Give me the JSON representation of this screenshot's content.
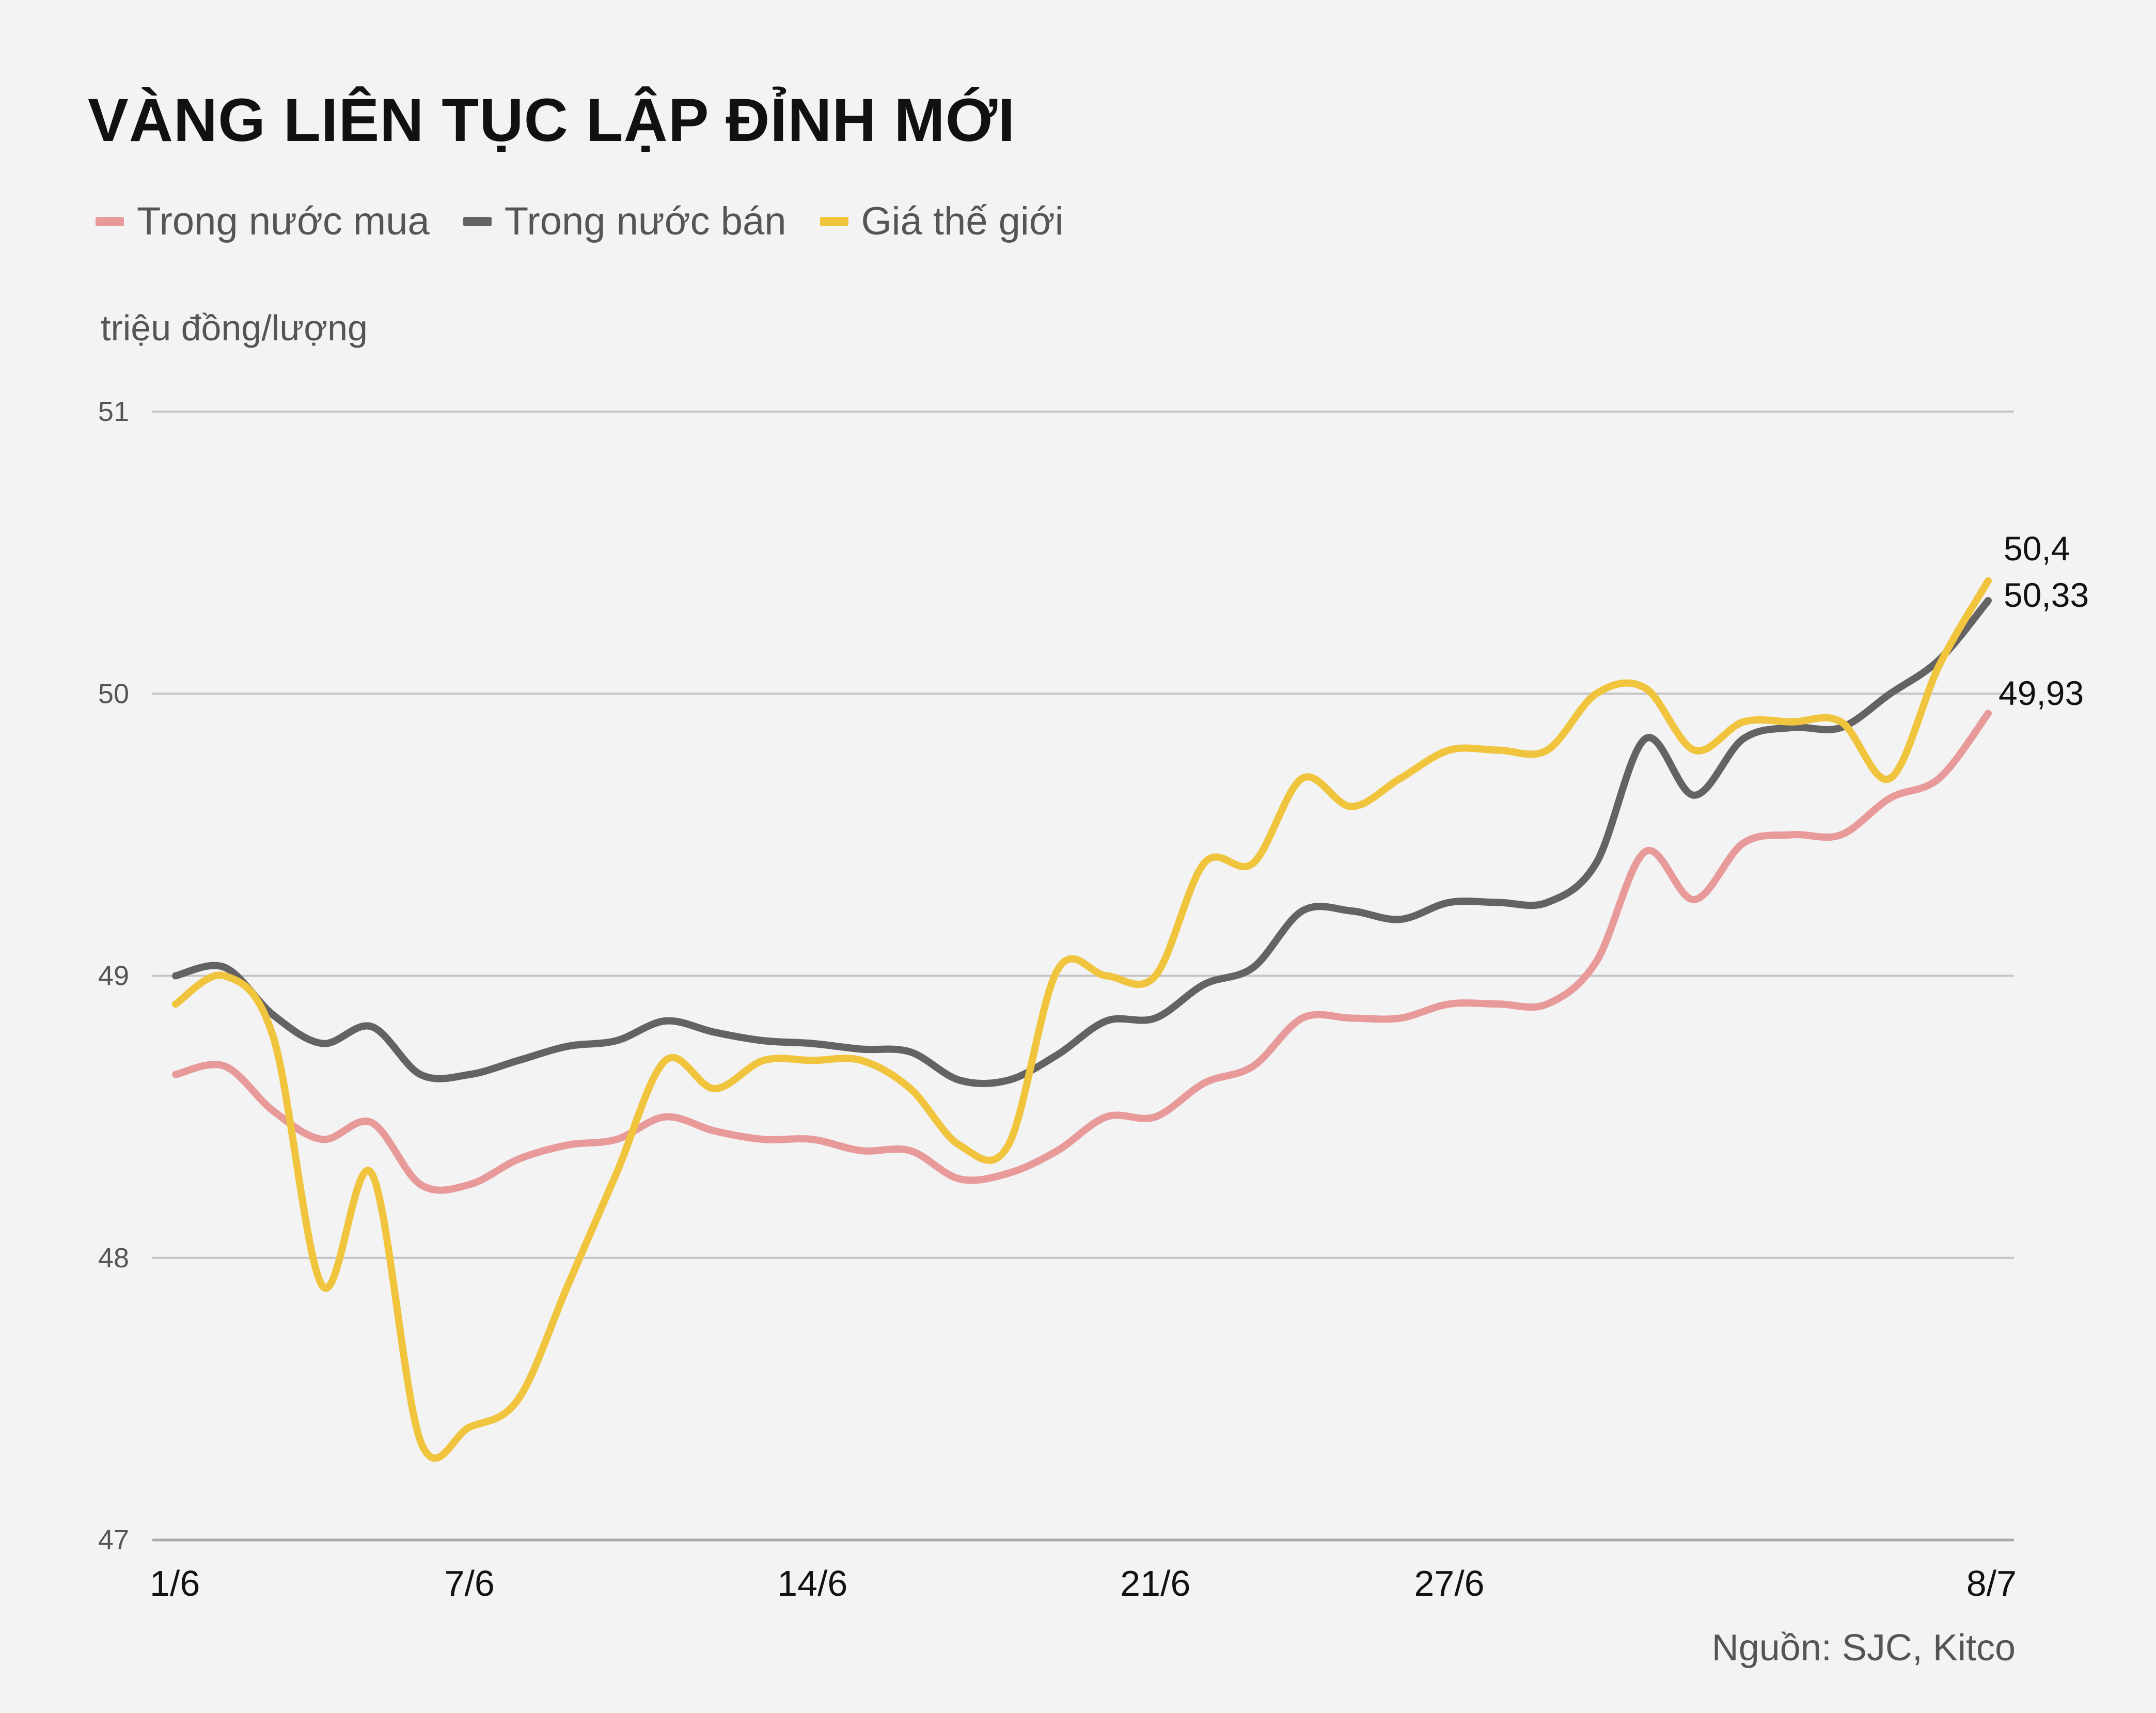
{
  "title": "VÀNG LIÊN TỤC LẬP ĐỈNH MỚI",
  "unit_label": "triệu đồng/lượng",
  "source": "Nguồn: SJC, Kitco",
  "chart_data": {
    "type": "line",
    "title": "VÀNG LIÊN TỤC LẬP ĐỈNH MỚI",
    "ylabel": "triệu đồng/lượng",
    "xlabel": "",
    "ylim": [
      47,
      51
    ],
    "yticks": [
      "47",
      "48",
      "49",
      "50",
      "51"
    ],
    "xtick_labels": [
      "1/6",
      "7/6",
      "14/6",
      "21/6",
      "27/6",
      "8/7"
    ],
    "xtick_days": [
      0,
      6,
      13,
      20,
      26,
      37
    ],
    "grid": true,
    "legend_position": "top-left",
    "end_labels": [
      "50,4",
      "50,33",
      "49,93"
    ],
    "series": [
      {
        "name": "Trong nước mua",
        "color": "#e89a9a",
        "points": [
          [
            0,
            48.65
          ],
          [
            1,
            48.68
          ],
          [
            2,
            48.52
          ],
          [
            3,
            48.42
          ],
          [
            4,
            48.48
          ],
          [
            5,
            48.26
          ],
          [
            6,
            48.26
          ],
          [
            7,
            48.35
          ],
          [
            8,
            48.4
          ],
          [
            9,
            48.42
          ],
          [
            10,
            48.5
          ],
          [
            11,
            48.45
          ],
          [
            12,
            48.42
          ],
          [
            13,
            48.42
          ],
          [
            14,
            48.38
          ],
          [
            15,
            48.38
          ],
          [
            16,
            48.28
          ],
          [
            17,
            48.3
          ],
          [
            18,
            48.38
          ],
          [
            19,
            48.5
          ],
          [
            20,
            48.5
          ],
          [
            21,
            48.62
          ],
          [
            22,
            48.68
          ],
          [
            23,
            48.85
          ],
          [
            24,
            48.85
          ],
          [
            25,
            48.85
          ],
          [
            26,
            48.9
          ],
          [
            27,
            48.9
          ],
          [
            28,
            48.9
          ],
          [
            29,
            49.05
          ],
          [
            30,
            49.44
          ],
          [
            31,
            49.27
          ],
          [
            32,
            49.47
          ],
          [
            33,
            49.5
          ],
          [
            34,
            49.5
          ],
          [
            35,
            49.63
          ],
          [
            36,
            49.7
          ],
          [
            37,
            49.93
          ]
        ]
      },
      {
        "name": "Trong nước bán",
        "color": "#636363",
        "points": [
          [
            0,
            49.0
          ],
          [
            1,
            49.03
          ],
          [
            2,
            48.86
          ],
          [
            3,
            48.76
          ],
          [
            4,
            48.82
          ],
          [
            5,
            48.65
          ],
          [
            6,
            48.65
          ],
          [
            7,
            48.7
          ],
          [
            8,
            48.75
          ],
          [
            9,
            48.77
          ],
          [
            10,
            48.84
          ],
          [
            11,
            48.8
          ],
          [
            12,
            48.77
          ],
          [
            13,
            48.76
          ],
          [
            14,
            48.74
          ],
          [
            15,
            48.73
          ],
          [
            16,
            48.63
          ],
          [
            17,
            48.63
          ],
          [
            18,
            48.72
          ],
          [
            19,
            48.84
          ],
          [
            20,
            48.85
          ],
          [
            21,
            48.97
          ],
          [
            22,
            49.03
          ],
          [
            23,
            49.23
          ],
          [
            24,
            49.23
          ],
          [
            25,
            49.2
          ],
          [
            26,
            49.26
          ],
          [
            27,
            49.26
          ],
          [
            28,
            49.26
          ],
          [
            29,
            49.4
          ],
          [
            30,
            49.84
          ],
          [
            31,
            49.64
          ],
          [
            32,
            49.84
          ],
          [
            33,
            49.88
          ],
          [
            34,
            49.88
          ],
          [
            35,
            50.0
          ],
          [
            36,
            50.12
          ],
          [
            37,
            50.33
          ]
        ]
      },
      {
        "name": "Giá thế giới",
        "color": "#f0c43c",
        "points": [
          [
            0,
            48.9
          ],
          [
            1,
            49.0
          ],
          [
            2,
            48.78
          ],
          [
            3,
            47.9
          ],
          [
            4,
            48.3
          ],
          [
            5,
            47.35
          ],
          [
            6,
            47.4
          ],
          [
            7,
            47.5
          ],
          [
            8,
            47.9
          ],
          [
            9,
            48.3
          ],
          [
            10,
            48.7
          ],
          [
            11,
            48.6
          ],
          [
            12,
            48.7
          ],
          [
            13,
            48.7
          ],
          [
            14,
            48.7
          ],
          [
            15,
            48.6
          ],
          [
            16,
            48.4
          ],
          [
            17,
            48.4
          ],
          [
            18,
            49.02
          ],
          [
            19,
            49.0
          ],
          [
            20,
            49.0
          ],
          [
            21,
            49.4
          ],
          [
            22,
            49.4
          ],
          [
            23,
            49.7
          ],
          [
            24,
            49.6
          ],
          [
            25,
            49.7
          ],
          [
            26,
            49.8
          ],
          [
            27,
            49.8
          ],
          [
            28,
            49.8
          ],
          [
            29,
            50.0
          ],
          [
            30,
            50.02
          ],
          [
            31,
            49.8
          ],
          [
            32,
            49.9
          ],
          [
            33,
            49.9
          ],
          [
            34,
            49.9
          ],
          [
            35,
            49.7
          ],
          [
            36,
            50.1
          ],
          [
            37,
            50.4
          ]
        ]
      }
    ]
  }
}
